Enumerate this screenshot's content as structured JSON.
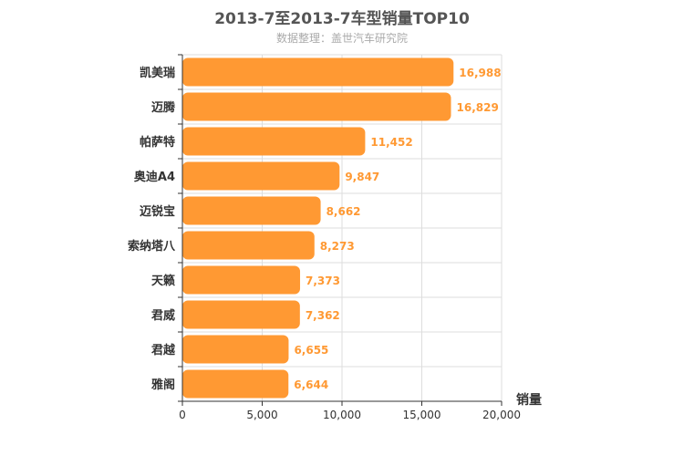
{
  "chart_data": {
    "type": "bar",
    "orientation": "horizontal",
    "title": "2013-7至2013-7车型销量TOP10",
    "subtitle": "数据整理：盖世汽车研究院",
    "categories": [
      "凯美瑞",
      "迈腾",
      "帕萨特",
      "奥迪A4",
      "迈锐宝",
      "索纳塔八",
      "天籁",
      "君威",
      "君越",
      "雅阁"
    ],
    "values": [
      16988,
      16829,
      11452,
      9847,
      8662,
      8273,
      7373,
      7362,
      6655,
      6644
    ],
    "value_labels": [
      "16,988",
      "16,829",
      "11,452",
      "9,847",
      "8,662",
      "8,273",
      "7,373",
      "7,362",
      "6,655",
      "6,644"
    ],
    "xlabel": "销量",
    "ylabel": "",
    "xlim": [
      0,
      20000
    ],
    "x_ticks": [
      "0",
      "5,000",
      "10,000",
      "15,000",
      "20,000"
    ],
    "x_tick_values": [
      0,
      5000,
      10000,
      15000,
      20000
    ],
    "grid": true,
    "colors": {
      "bar": "#ff9933",
      "label": "#ff9933",
      "grid": "#dddddd",
      "axis": "#333333"
    }
  }
}
